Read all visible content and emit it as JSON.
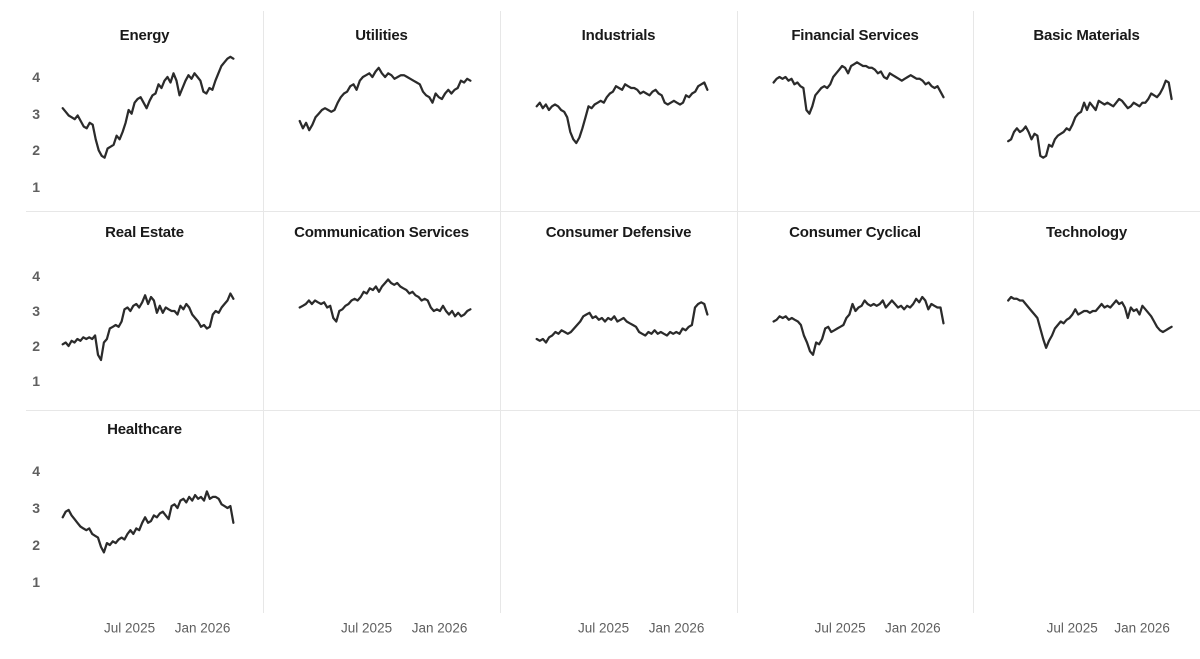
{
  "chart_data": {
    "type": "line",
    "layout": "small-multiples grid, 5 columns x 3 rows, shared axes",
    "x_axis": {
      "ticks": [
        "Jul 2025",
        "Jan 2026"
      ],
      "range_note": "weekly data from approx Jan 2025 to Mar 2026"
    },
    "y_axis": {
      "ticks": [
        4,
        3,
        2,
        1
      ],
      "ylim": [
        1,
        5
      ]
    },
    "panels": [
      {
        "title": "Energy",
        "row": 0,
        "col": 0,
        "values": [
          3.15,
          3.05,
          2.95,
          2.9,
          2.85,
          2.95,
          2.8,
          2.65,
          2.6,
          2.75,
          2.7,
          2.3,
          2.0,
          1.85,
          1.8,
          2.05,
          2.1,
          2.15,
          2.4,
          2.3,
          2.5,
          2.75,
          3.1,
          3.0,
          3.3,
          3.4,
          3.45,
          3.3,
          3.15,
          3.35,
          3.5,
          3.55,
          3.8,
          3.7,
          3.9,
          4.0,
          3.85,
          4.1,
          3.9,
          3.5,
          3.7,
          3.9,
          4.05,
          3.95,
          4.1,
          4.0,
          3.9,
          3.6,
          3.55,
          3.7,
          3.65,
          3.9,
          4.1,
          4.3,
          4.4,
          4.5,
          4.55,
          4.5
        ]
      },
      {
        "title": "Utilities",
        "row": 0,
        "col": 1,
        "values": [
          2.8,
          2.6,
          2.75,
          2.55,
          2.7,
          2.9,
          3.0,
          3.1,
          3.15,
          3.1,
          3.05,
          3.1,
          3.3,
          3.45,
          3.55,
          3.6,
          3.75,
          3.8,
          3.65,
          3.9,
          4.0,
          4.05,
          4.1,
          4.0,
          4.15,
          4.25,
          4.1,
          4.0,
          4.1,
          4.05,
          3.95,
          4.0,
          4.05,
          4.05,
          4.0,
          3.95,
          3.9,
          3.85,
          3.8,
          3.6,
          3.5,
          3.45,
          3.3,
          3.55,
          3.45,
          3.4,
          3.55,
          3.65,
          3.55,
          3.65,
          3.7,
          3.9,
          3.85,
          3.95,
          3.9
        ]
      },
      {
        "title": "Industrials",
        "row": 0,
        "col": 2,
        "values": [
          3.2,
          3.3,
          3.15,
          3.25,
          3.1,
          3.2,
          3.25,
          3.2,
          3.1,
          3.05,
          2.9,
          2.5,
          2.3,
          2.2,
          2.35,
          2.6,
          2.9,
          3.2,
          3.15,
          3.25,
          3.3,
          3.35,
          3.3,
          3.45,
          3.55,
          3.6,
          3.75,
          3.7,
          3.65,
          3.8,
          3.75,
          3.7,
          3.7,
          3.65,
          3.55,
          3.6,
          3.55,
          3.5,
          3.6,
          3.65,
          3.55,
          3.5,
          3.3,
          3.25,
          3.3,
          3.35,
          3.3,
          3.25,
          3.3,
          3.5,
          3.45,
          3.55,
          3.6,
          3.75,
          3.8,
          3.85,
          3.65
        ]
      },
      {
        "title": "Financial Services",
        "row": 0,
        "col": 3,
        "values": [
          3.85,
          3.95,
          4.0,
          3.95,
          4.0,
          3.9,
          3.95,
          3.8,
          3.85,
          3.75,
          3.7,
          3.1,
          3.0,
          3.2,
          3.5,
          3.6,
          3.7,
          3.75,
          3.7,
          3.8,
          4.0,
          4.1,
          4.2,
          4.3,
          4.25,
          4.1,
          4.3,
          4.35,
          4.4,
          4.35,
          4.3,
          4.3,
          4.25,
          4.25,
          4.2,
          4.1,
          4.15,
          4.0,
          3.95,
          4.1,
          4.05,
          4.0,
          3.95,
          3.9,
          3.95,
          4.0,
          4.05,
          4.0,
          3.95,
          3.95,
          3.9,
          3.8,
          3.85,
          3.75,
          3.7,
          3.75,
          3.6,
          3.45
        ]
      },
      {
        "title": "Basic Materials",
        "row": 0,
        "col": 4,
        "values": [
          2.25,
          2.3,
          2.5,
          2.6,
          2.5,
          2.55,
          2.65,
          2.5,
          2.3,
          2.45,
          2.4,
          1.85,
          1.8,
          1.85,
          2.15,
          2.1,
          2.3,
          2.4,
          2.45,
          2.5,
          2.6,
          2.55,
          2.7,
          2.9,
          3.0,
          3.05,
          3.3,
          3.1,
          3.3,
          3.2,
          3.1,
          3.35,
          3.3,
          3.25,
          3.3,
          3.25,
          3.2,
          3.3,
          3.4,
          3.35,
          3.25,
          3.15,
          3.2,
          3.3,
          3.25,
          3.2,
          3.3,
          3.3,
          3.4,
          3.55,
          3.5,
          3.45,
          3.55,
          3.7,
          3.9,
          3.85,
          3.4
        ]
      },
      {
        "title": "Real Estate",
        "row": 1,
        "col": 0,
        "values": [
          2.05,
          2.1,
          2.0,
          2.15,
          2.1,
          2.2,
          2.15,
          2.25,
          2.2,
          2.25,
          2.2,
          2.3,
          1.75,
          1.6,
          2.1,
          2.2,
          2.5,
          2.55,
          2.6,
          2.55,
          2.7,
          3.05,
          3.1,
          3.0,
          3.15,
          3.2,
          3.1,
          3.25,
          3.45,
          3.2,
          3.4,
          3.3,
          2.95,
          3.15,
          2.95,
          3.1,
          3.05,
          3.0,
          3.0,
          2.9,
          3.15,
          3.05,
          3.2,
          3.1,
          2.9,
          2.8,
          2.7,
          2.55,
          2.6,
          2.5,
          2.55,
          2.9,
          3.0,
          2.95,
          3.1,
          3.2,
          3.3,
          3.5,
          3.35
        ]
      },
      {
        "title": "Communication Services",
        "row": 1,
        "col": 1,
        "values": [
          3.1,
          3.15,
          3.2,
          3.3,
          3.2,
          3.3,
          3.25,
          3.2,
          3.25,
          3.1,
          3.15,
          2.8,
          2.7,
          3.0,
          3.05,
          3.15,
          3.2,
          3.3,
          3.35,
          3.3,
          3.4,
          3.55,
          3.5,
          3.65,
          3.6,
          3.7,
          3.55,
          3.7,
          3.8,
          3.9,
          3.8,
          3.75,
          3.8,
          3.7,
          3.65,
          3.6,
          3.5,
          3.55,
          3.45,
          3.4,
          3.3,
          3.35,
          3.3,
          3.1,
          3.0,
          3.05,
          3.0,
          3.15,
          3.0,
          2.9,
          3.0,
          2.85,
          2.95,
          2.85,
          2.9,
          3.0,
          3.05
        ]
      },
      {
        "title": "Consumer Defensive",
        "row": 1,
        "col": 2,
        "values": [
          2.2,
          2.15,
          2.2,
          2.1,
          2.25,
          2.3,
          2.4,
          2.35,
          2.45,
          2.4,
          2.35,
          2.4,
          2.5,
          2.6,
          2.7,
          2.85,
          2.9,
          2.95,
          2.8,
          2.85,
          2.75,
          2.8,
          2.7,
          2.8,
          2.75,
          2.85,
          2.7,
          2.75,
          2.8,
          2.7,
          2.65,
          2.6,
          2.55,
          2.4,
          2.35,
          2.3,
          2.4,
          2.35,
          2.45,
          2.35,
          2.4,
          2.35,
          2.3,
          2.4,
          2.35,
          2.4,
          2.35,
          2.5,
          2.45,
          2.55,
          2.6,
          3.1,
          3.2,
          3.25,
          3.2,
          2.9
        ]
      },
      {
        "title": "Consumer Cyclical",
        "row": 1,
        "col": 3,
        "values": [
          2.7,
          2.75,
          2.85,
          2.8,
          2.85,
          2.75,
          2.8,
          2.75,
          2.7,
          2.6,
          2.3,
          2.1,
          1.85,
          1.75,
          2.1,
          2.05,
          2.2,
          2.5,
          2.55,
          2.4,
          2.45,
          2.5,
          2.55,
          2.6,
          2.8,
          2.9,
          3.2,
          3.0,
          3.1,
          3.15,
          3.3,
          3.2,
          3.15,
          3.2,
          3.15,
          3.2,
          3.3,
          3.1,
          3.2,
          3.3,
          3.2,
          3.1,
          3.15,
          3.05,
          3.15,
          3.1,
          3.2,
          3.35,
          3.25,
          3.4,
          3.3,
          3.05,
          3.2,
          3.15,
          3.1,
          3.1,
          2.65
        ]
      },
      {
        "title": "Technology",
        "row": 1,
        "col": 4,
        "values": [
          3.3,
          3.4,
          3.35,
          3.35,
          3.3,
          3.3,
          3.2,
          3.1,
          3.0,
          2.9,
          2.8,
          2.5,
          2.2,
          1.95,
          2.15,
          2.3,
          2.5,
          2.6,
          2.7,
          2.65,
          2.75,
          2.8,
          2.9,
          3.05,
          2.9,
          2.95,
          3.0,
          3.0,
          2.95,
          3.0,
          3.0,
          3.1,
          3.2,
          3.1,
          3.15,
          3.1,
          3.2,
          3.3,
          3.2,
          3.25,
          3.1,
          2.8,
          3.1,
          3.0,
          3.05,
          2.9,
          3.15,
          3.05,
          2.95,
          2.85,
          2.7,
          2.55,
          2.45,
          2.4,
          2.45,
          2.5,
          2.55
        ]
      },
      {
        "title": "Healthcare",
        "row": 2,
        "col": 0,
        "values": [
          2.75,
          2.9,
          2.95,
          2.8,
          2.7,
          2.6,
          2.5,
          2.45,
          2.4,
          2.45,
          2.3,
          2.25,
          2.2,
          1.95,
          1.8,
          2.05,
          2.0,
          2.1,
          2.05,
          2.15,
          2.2,
          2.15,
          2.3,
          2.4,
          2.3,
          2.45,
          2.4,
          2.6,
          2.75,
          2.6,
          2.65,
          2.8,
          2.75,
          2.85,
          2.9,
          2.8,
          2.7,
          3.05,
          3.1,
          3.0,
          3.2,
          3.25,
          3.15,
          3.3,
          3.2,
          3.35,
          3.25,
          3.3,
          3.2,
          3.45,
          3.25,
          3.3,
          3.3,
          3.25,
          3.1,
          3.05,
          3.0,
          3.05,
          2.6
        ]
      }
    ]
  },
  "style": {
    "line_color": "#2b2b2b",
    "title_color": "#191919",
    "tick_color": "#5f5f5f",
    "divider_color": "#e7e7e7",
    "background": "#ffffff"
  }
}
